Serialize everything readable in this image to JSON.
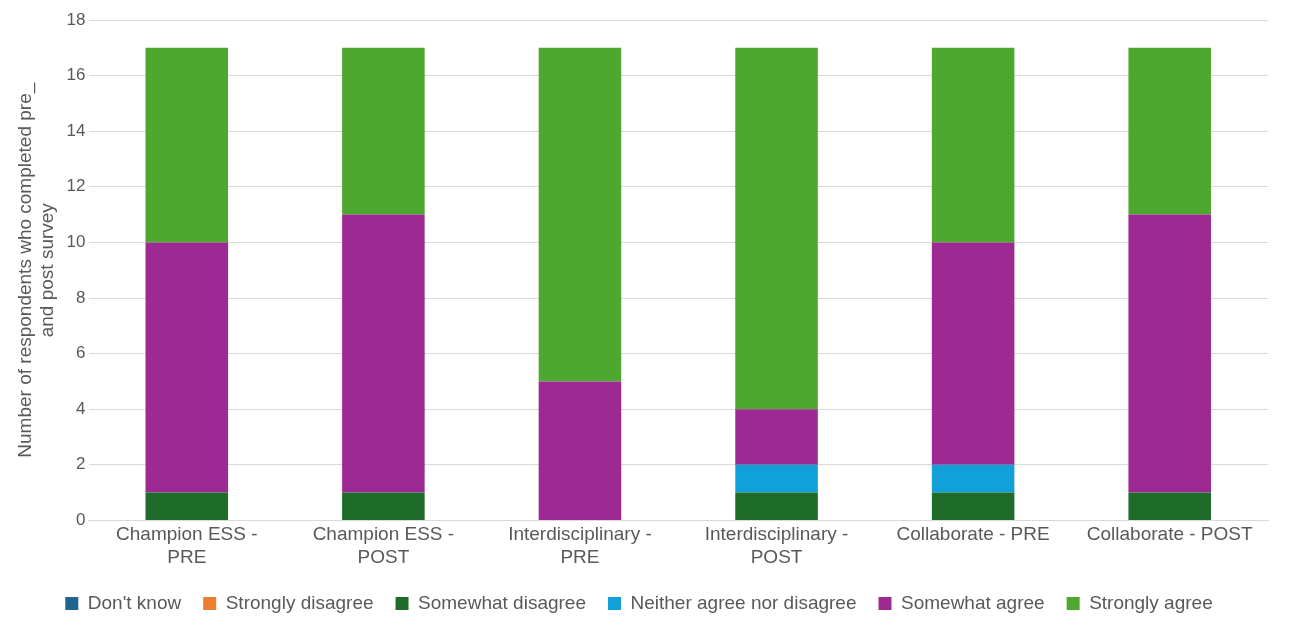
{
  "chart_data": {
    "type": "bar",
    "stacked": true,
    "ylabel": "Number of respondents who completed pre_ and post survey",
    "categories": [
      "Champion ESS - PRE",
      "Champion ESS - POST",
      "Interdisciplinary - PRE",
      "Interdisciplinary - POST",
      "Collaborate - PRE",
      "Collaborate - POST"
    ],
    "series": [
      {
        "name": "Don't know",
        "color": "#1f6391",
        "values": [
          0,
          0,
          0,
          0,
          0,
          0
        ]
      },
      {
        "name": "Strongly disagree",
        "color": "#ed7d31",
        "values": [
          0,
          0,
          0,
          0,
          0,
          0
        ]
      },
      {
        "name": "Somewhat disagree",
        "color": "#1e6b2a",
        "values": [
          1,
          1,
          0,
          1,
          1,
          1
        ]
      },
      {
        "name": "Neither agree nor disagree",
        "color": "#12a0d8",
        "values": [
          0,
          0,
          0,
          1,
          1,
          0
        ]
      },
      {
        "name": "Somewhat agree",
        "color": "#9c2a92",
        "values": [
          9,
          10,
          5,
          2,
          8,
          10
        ]
      },
      {
        "name": "Strongly agree",
        "color": "#4ea72e",
        "values": [
          7,
          6,
          12,
          13,
          7,
          6
        ]
      }
    ],
    "ylim": [
      0,
      18
    ],
    "yticks": [
      0,
      2,
      4,
      6,
      8,
      10,
      12,
      14,
      16,
      18
    ],
    "grid": "y",
    "legend": "bottom"
  }
}
